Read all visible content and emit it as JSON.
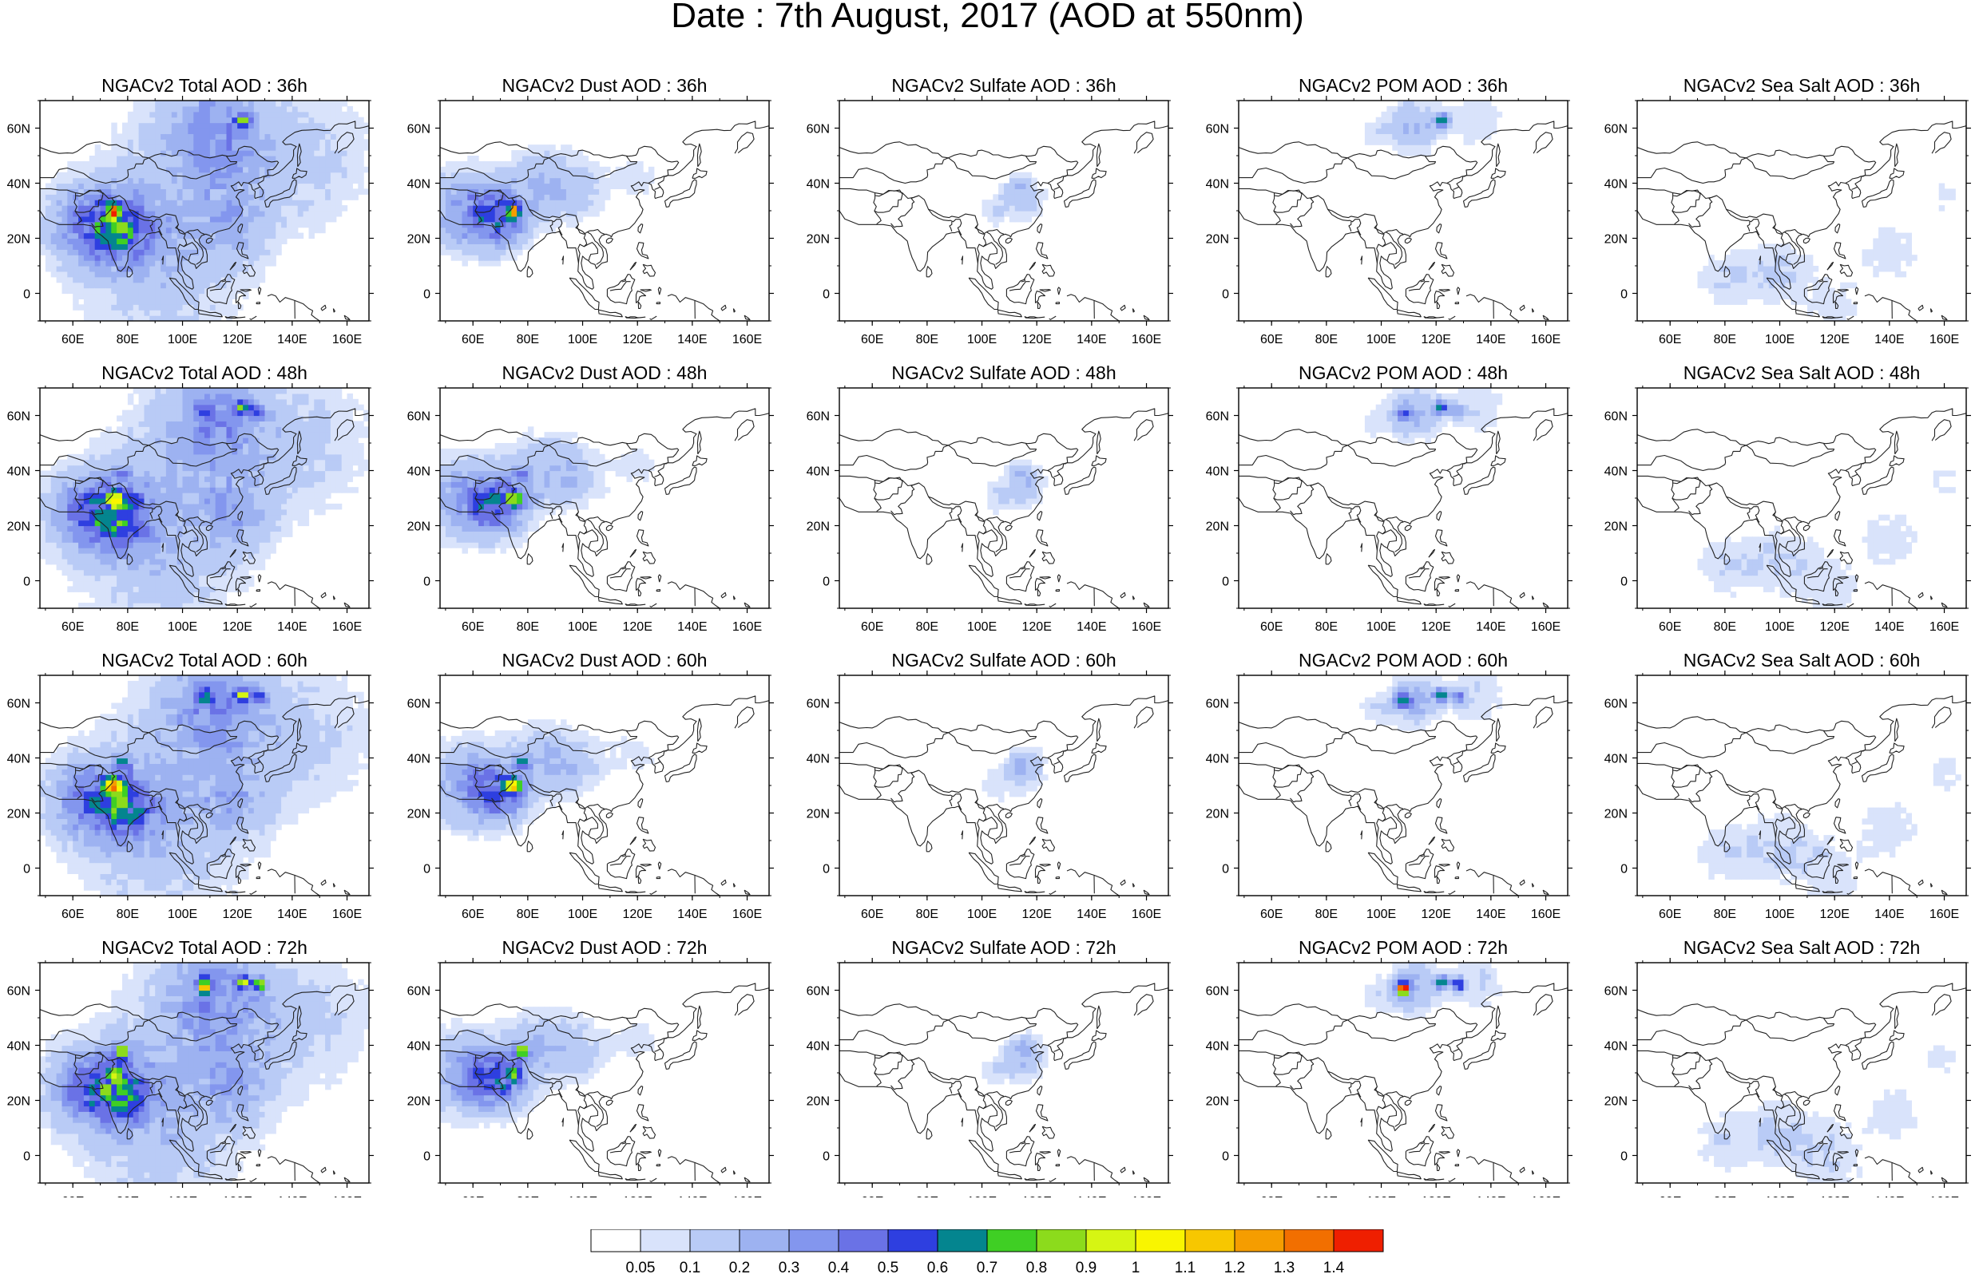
{
  "title": "Date : 7th August, 2017 (AOD at 550nm)",
  "x_tick_labels": [
    "60E",
    "80E",
    "100E",
    "120E",
    "140E",
    "160E"
  ],
  "y_tick_labels": [
    "60N",
    "40N",
    "20N",
    "0"
  ],
  "x_ticks_deg": [
    60,
    80,
    100,
    120,
    140,
    160
  ],
  "y_ticks_deg": [
    60,
    40,
    20,
    0
  ],
  "map_extent": {
    "lon": [
      48,
      168
    ],
    "lat": [
      -10,
      70
    ]
  },
  "panels": [
    {
      "title": "NGACv2 Total AOD : 36h",
      "species": "total",
      "forecast_hour": 36
    },
    {
      "title": "NGACv2 Dust AOD : 36h",
      "species": "dust",
      "forecast_hour": 36
    },
    {
      "title": "NGACv2 Sulfate AOD : 36h",
      "species": "sulfate",
      "forecast_hour": 36
    },
    {
      "title": "NGACv2 POM AOD : 36h",
      "species": "pom",
      "forecast_hour": 36
    },
    {
      "title": "NGACv2 Sea Salt AOD : 36h",
      "species": "seasalt",
      "forecast_hour": 36
    },
    {
      "title": "NGACv2 Total AOD : 48h",
      "species": "total",
      "forecast_hour": 48
    },
    {
      "title": "NGACv2 Dust AOD : 48h",
      "species": "dust",
      "forecast_hour": 48
    },
    {
      "title": "NGACv2 Sulfate AOD : 48h",
      "species": "sulfate",
      "forecast_hour": 48
    },
    {
      "title": "NGACv2 POM AOD : 48h",
      "species": "pom",
      "forecast_hour": 48
    },
    {
      "title": "NGACv2 Sea Salt AOD : 48h",
      "species": "seasalt",
      "forecast_hour": 48
    },
    {
      "title": "NGACv2 Total AOD : 60h",
      "species": "total",
      "forecast_hour": 60
    },
    {
      "title": "NGACv2 Dust AOD : 60h",
      "species": "dust",
      "forecast_hour": 60
    },
    {
      "title": "NGACv2 Sulfate AOD : 60h",
      "species": "sulfate",
      "forecast_hour": 60
    },
    {
      "title": "NGACv2 POM AOD : 60h",
      "species": "pom",
      "forecast_hour": 60
    },
    {
      "title": "NGACv2 Sea Salt AOD : 60h",
      "species": "seasalt",
      "forecast_hour": 60
    },
    {
      "title": "NGACv2 Total AOD : 72h",
      "species": "total",
      "forecast_hour": 72
    },
    {
      "title": "NGACv2 Dust AOD : 72h",
      "species": "dust",
      "forecast_hour": 72
    },
    {
      "title": "NGACv2 Sulfate AOD : 72h",
      "species": "sulfate",
      "forecast_hour": 72
    },
    {
      "title": "NGACv2 POM AOD : 72h",
      "species": "pom",
      "forecast_hour": 72
    },
    {
      "title": "NGACv2 Sea Salt  AOD : 72h",
      "species": "seasalt",
      "forecast_hour": 72
    }
  ],
  "colorbar": {
    "labels": [
      "0.05",
      "0.1",
      "0.2",
      "0.3",
      "0.4",
      "0.5",
      "0.6",
      "0.7",
      "0.8",
      "0.9",
      "1",
      "1.1",
      "1.2",
      "1.3",
      "1.4"
    ],
    "colors": [
      "#ffffff",
      "#d9e3fb",
      "#b9cbf6",
      "#9db2f1",
      "#8396ee",
      "#6a72e6",
      "#2e3fe0",
      "#04858f",
      "#3fcf24",
      "#8cdb1c",
      "#d6f513",
      "#f9f500",
      "#f7c700",
      "#f59d00",
      "#f26f00",
      "#ef1f00"
    ]
  }
}
